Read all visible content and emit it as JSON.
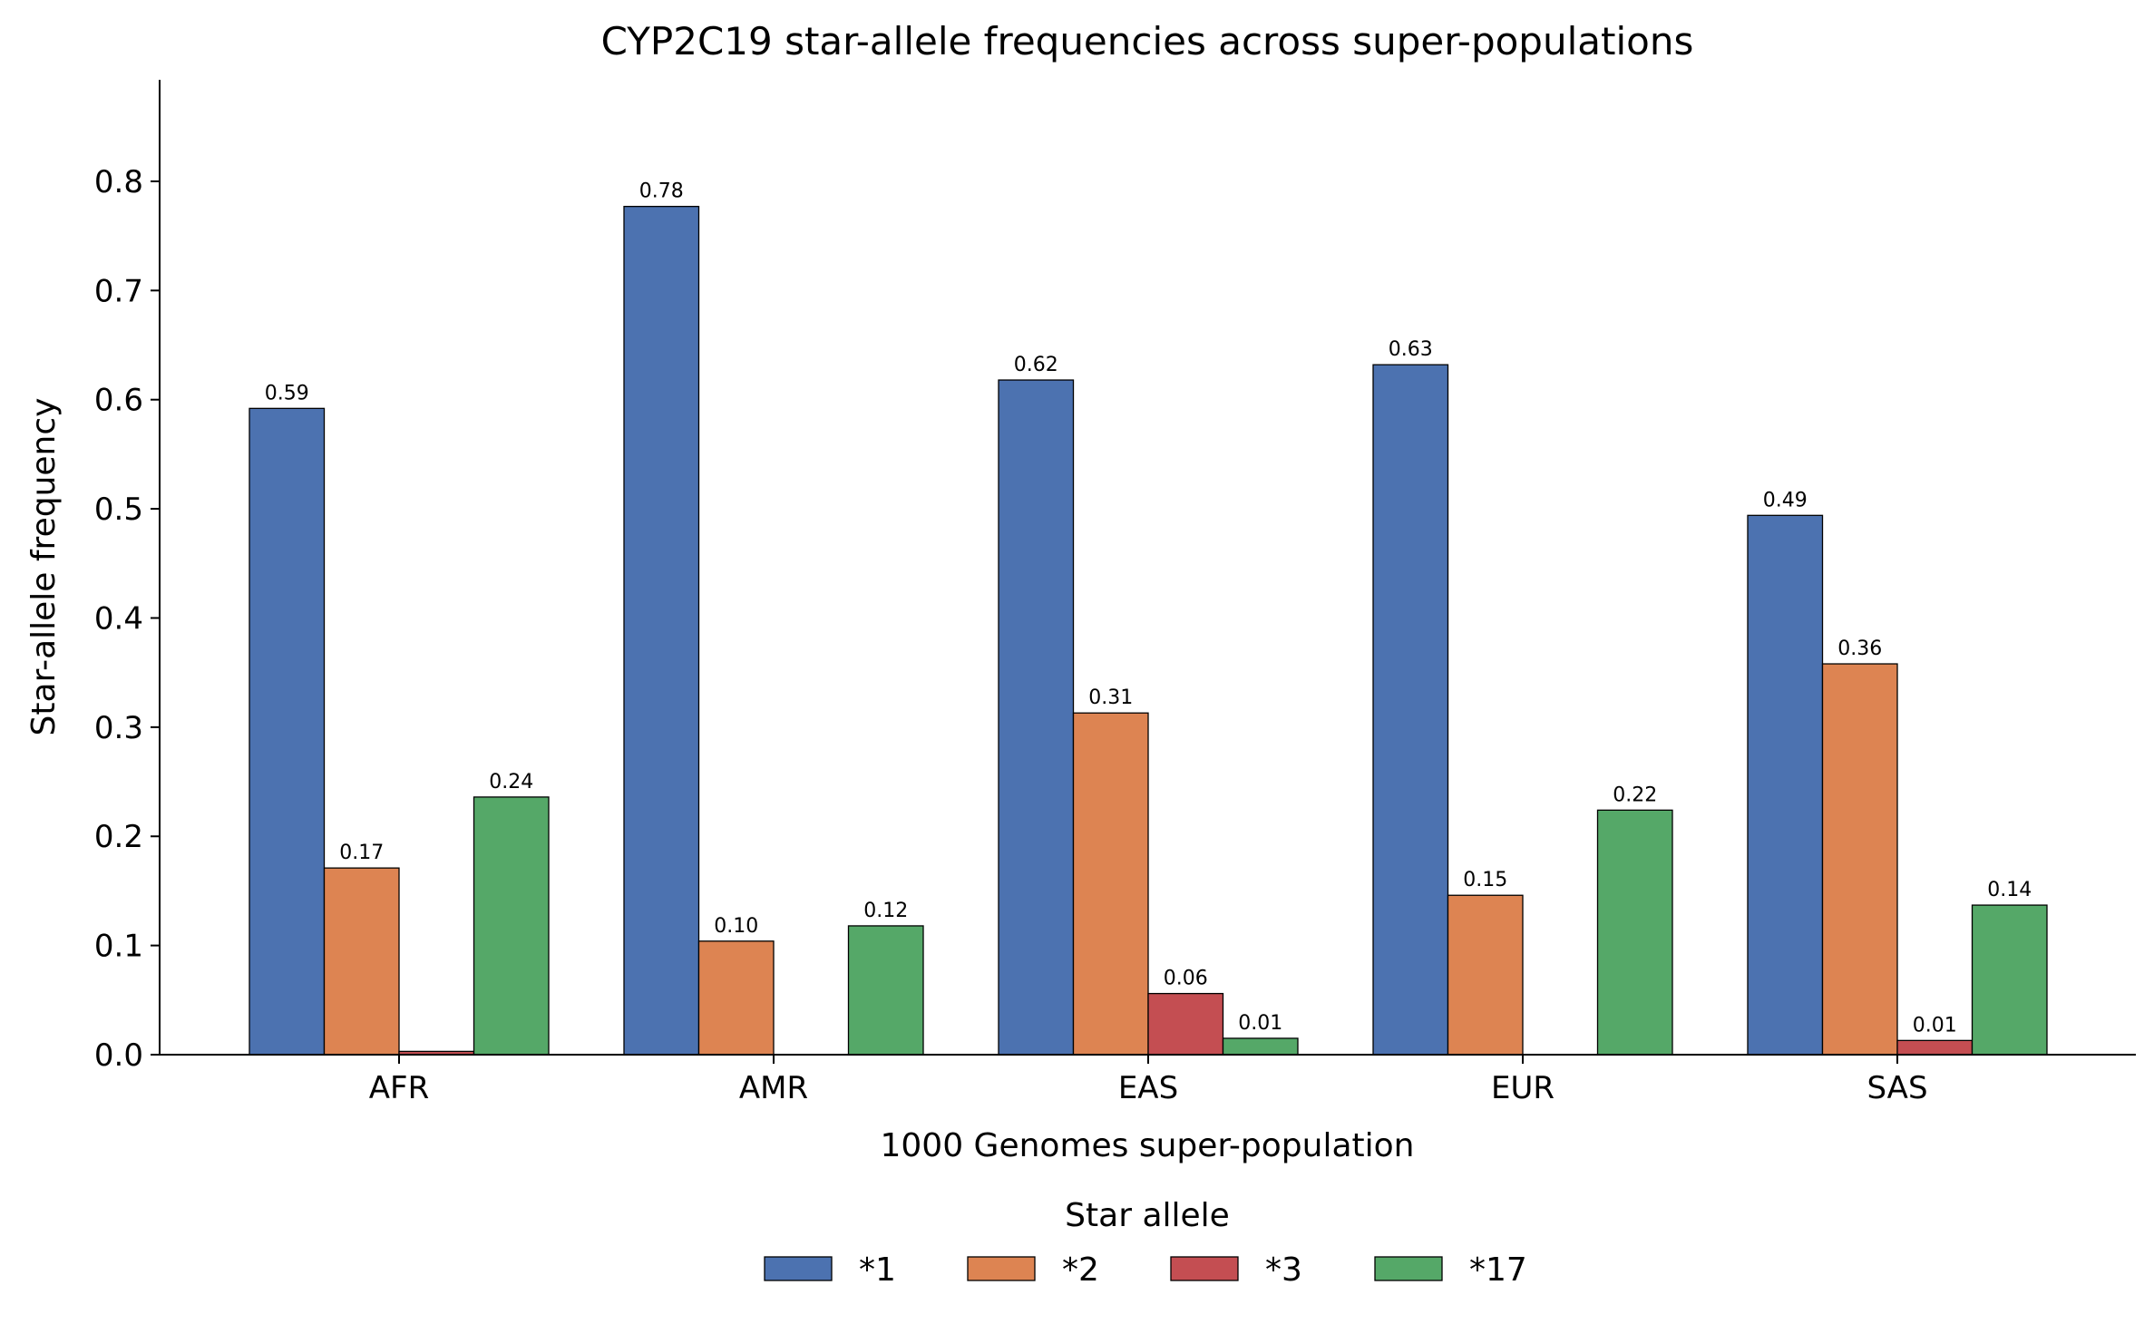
{
  "chart_data": {
    "type": "bar",
    "title": "CYP2C19 star-allele frequencies across super-populations",
    "xlabel": "1000 Genomes super-population",
    "ylabel": "Star-allele frequency",
    "categories": [
      "AFR",
      "AMR",
      "EAS",
      "EUR",
      "SAS"
    ],
    "ylim": [
      0,
      0.893
    ],
    "yticks": [
      "0.0",
      "0.1",
      "0.2",
      "0.3",
      "0.4",
      "0.5",
      "0.6",
      "0.7",
      "0.8"
    ],
    "grid": false,
    "legend": {
      "title": "Star allele",
      "placement": "bottom-center"
    },
    "series": [
      {
        "name": "*1",
        "color": "#4c72b0",
        "values": [
          0.592,
          0.777,
          0.618,
          0.632,
          0.494
        ],
        "labels": [
          "0.59",
          "0.78",
          "0.62",
          "0.63",
          "0.49"
        ]
      },
      {
        "name": "*2",
        "color": "#dd8452",
        "values": [
          0.171,
          0.104,
          0.313,
          0.146,
          0.358
        ],
        "labels": [
          "0.17",
          "0.10",
          "0.31",
          "0.15",
          "0.36"
        ]
      },
      {
        "name": "*3",
        "color": "#c44e52",
        "values": [
          0.003,
          0.0,
          0.056,
          0.0,
          0.013
        ],
        "labels": [
          "",
          "",
          "0.06",
          "",
          "0.01"
        ]
      },
      {
        "name": "*17",
        "color": "#55a868",
        "values": [
          0.236,
          0.118,
          0.015,
          0.224,
          0.137
        ],
        "labels": [
          "0.24",
          "0.12",
          "0.01",
          "0.22",
          "0.14"
        ]
      }
    ]
  }
}
